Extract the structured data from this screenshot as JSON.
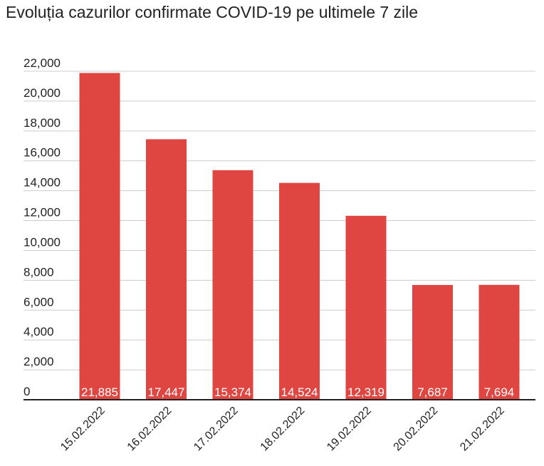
{
  "chart_data": {
    "type": "bar",
    "title": "Evoluția cazurilor confirmate COVID-19 pe ultimele 7 zile",
    "categories": [
      "15.02.2022",
      "16.02.2022",
      "17.02.2022",
      "18.02.2022",
      "19.02.2022",
      "20.02.2022",
      "21.02.2022"
    ],
    "values": [
      21885,
      17447,
      15374,
      14524,
      12319,
      7687,
      7694
    ],
    "data_labels": [
      "21,885",
      "17,447",
      "15,374",
      "14,524",
      "12,319",
      "7,687",
      "7,694"
    ],
    "yticks": [
      0,
      2000,
      4000,
      6000,
      8000,
      10000,
      12000,
      14000,
      16000,
      18000,
      20000,
      22000
    ],
    "ytick_labels": [
      "0",
      "2,000",
      "4,000",
      "6,000",
      "8,000",
      "10,000",
      "12,000",
      "14,000",
      "16,000",
      "18,000",
      "20,000",
      "22,000"
    ],
    "ylim": [
      0,
      22000
    ],
    "xlabel": "",
    "ylabel": "",
    "grid": true,
    "bar_color": "#e04641"
  }
}
